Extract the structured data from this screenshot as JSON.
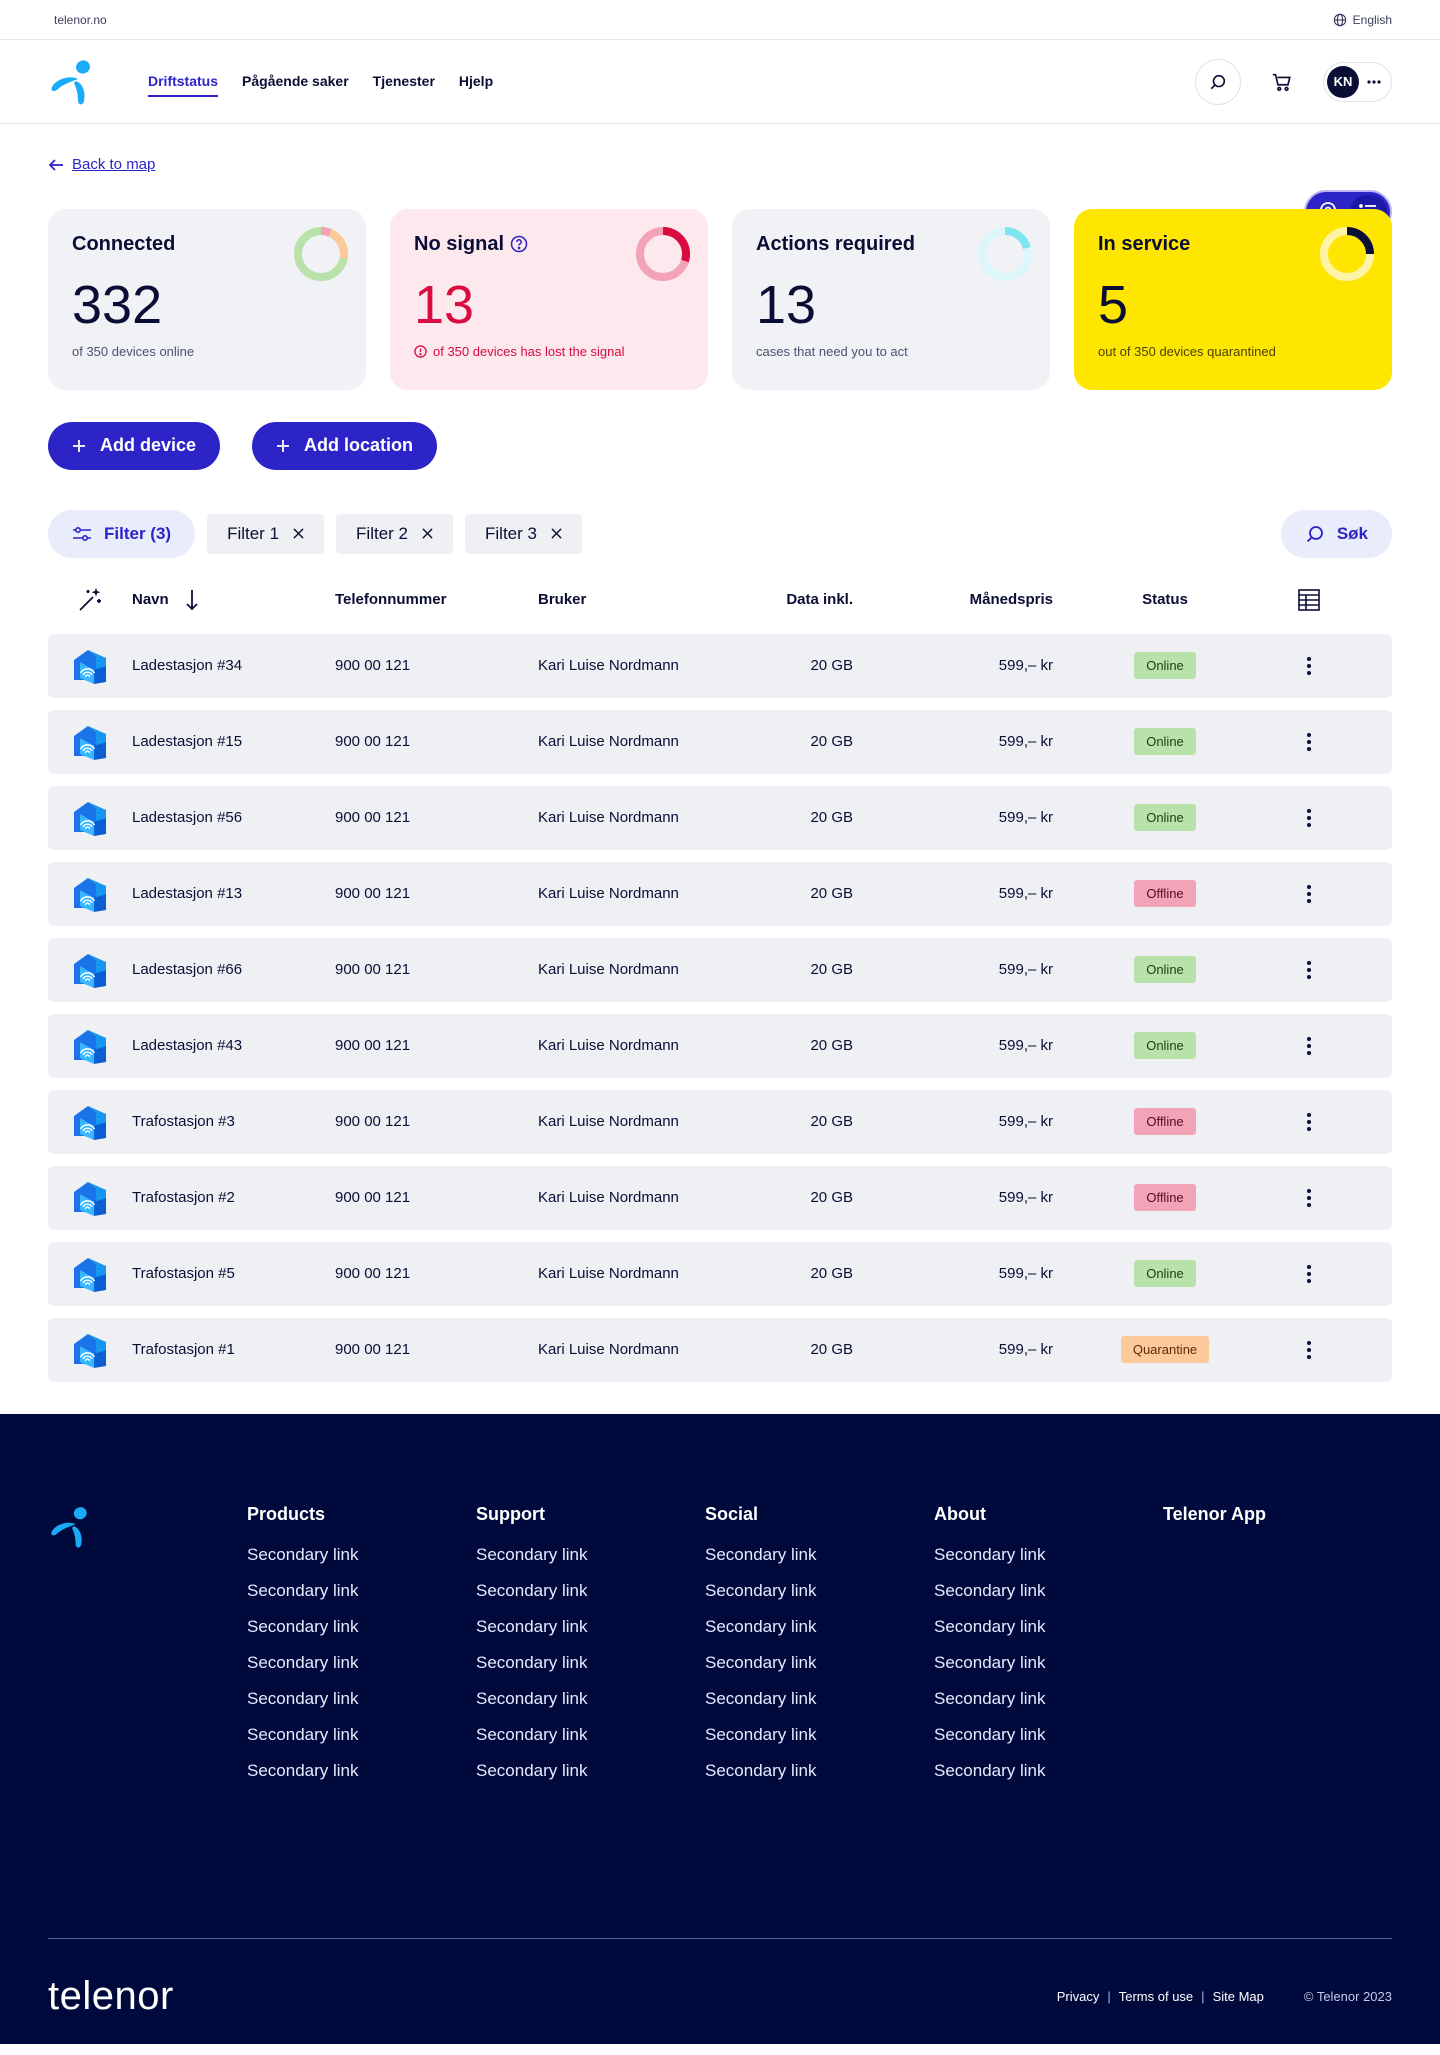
{
  "utility": {
    "domain": "telenor.no",
    "language": "English"
  },
  "nav": {
    "items": [
      {
        "label": "Driftstatus",
        "active": true
      },
      {
        "label": "Pågående saker",
        "active": false
      },
      {
        "label": "Tjenester",
        "active": false
      },
      {
        "label": "Hjelp",
        "active": false
      }
    ],
    "avatar_initials": "KN"
  },
  "main": {
    "back_label": "Back to map",
    "cards": [
      {
        "title": "Connected",
        "value": "332",
        "subtitle": "of 350 devices online"
      },
      {
        "title": "No signal",
        "value": "13",
        "subtitle": "of 350 devices has lost the signal"
      },
      {
        "title": "Actions required",
        "value": "13",
        "subtitle": "cases that need you to act"
      },
      {
        "title": "In service",
        "value": "5",
        "subtitle": "out of 350 devices quarantined"
      }
    ],
    "add_device_label": "Add device",
    "add_location_label": "Add location",
    "filter_label": "Filter (3)",
    "chips": [
      "Filter 1",
      "Filter 2",
      "Filter 3"
    ],
    "search_label": "Søk"
  },
  "table": {
    "headers": {
      "name": "Navn",
      "phone": "Telefonnummer",
      "user": "Bruker",
      "data": "Data inkl.",
      "price": "Månedspris",
      "status": "Status"
    },
    "rows": [
      {
        "name": "Ladestasjon #34",
        "phone": "900 00 121",
        "user": "Kari Luise Nordmann",
        "data": "20 GB",
        "price": "599,– kr",
        "status": "Online"
      },
      {
        "name": "Ladestasjon #15",
        "phone": "900 00 121",
        "user": "Kari Luise Nordmann",
        "data": "20 GB",
        "price": "599,– kr",
        "status": "Online"
      },
      {
        "name": "Ladestasjon #56",
        "phone": "900 00 121",
        "user": "Kari Luise Nordmann",
        "data": "20 GB",
        "price": "599,– kr",
        "status": "Online"
      },
      {
        "name": "Ladestasjon #13",
        "phone": "900 00 121",
        "user": "Kari Luise Nordmann",
        "data": "20 GB",
        "price": "599,– kr",
        "status": "Offline"
      },
      {
        "name": "Ladestasjon #66",
        "phone": "900 00 121",
        "user": "Kari Luise Nordmann",
        "data": "20 GB",
        "price": "599,– kr",
        "status": "Online"
      },
      {
        "name": "Ladestasjon #43",
        "phone": "900 00 121",
        "user": "Kari Luise Nordmann",
        "data": "20 GB",
        "price": "599,– kr",
        "status": "Online"
      },
      {
        "name": "Trafostasjon #3",
        "phone": "900 00 121",
        "user": "Kari Luise Nordmann",
        "data": "20 GB",
        "price": "599,– kr",
        "status": "Offline"
      },
      {
        "name": "Trafostasjon #2",
        "phone": "900 00 121",
        "user": "Kari Luise Nordmann",
        "data": "20 GB",
        "price": "599,– kr",
        "status": "Offline"
      },
      {
        "name": "Trafostasjon #5",
        "phone": "900 00 121",
        "user": "Kari Luise Nordmann",
        "data": "20 GB",
        "price": "599,– kr",
        "status": "Online"
      },
      {
        "name": "Trafostasjon #1",
        "phone": "900 00 121",
        "user": "Kari Luise Nordmann",
        "data": "20 GB",
        "price": "599,– kr",
        "status": "Quarantine"
      }
    ]
  },
  "footer": {
    "columns": [
      {
        "title": "Products",
        "links": [
          "Secondary link",
          "Secondary link",
          "Secondary link",
          "Secondary link",
          "Secondary link",
          "Secondary link",
          "Secondary link"
        ]
      },
      {
        "title": "Support",
        "links": [
          "Secondary link",
          "Secondary link",
          "Secondary link",
          "Secondary link",
          "Secondary link",
          "Secondary link",
          "Secondary link"
        ]
      },
      {
        "title": "Social",
        "links": [
          "Secondary link",
          "Secondary link",
          "Secondary link",
          "Secondary link",
          "Secondary link",
          "Secondary link",
          "Secondary link"
        ]
      },
      {
        "title": "About",
        "links": [
          "Secondary link",
          "Secondary link",
          "Secondary link",
          "Secondary link",
          "Secondary link",
          "Secondary link",
          "Secondary link"
        ]
      },
      {
        "title": "Telenor App",
        "links": []
      }
    ],
    "wordmark": "telenor",
    "legal": [
      "Privacy",
      "Terms of use",
      "Site Map"
    ],
    "copyright": "© Telenor 2023"
  },
  "colors": {
    "accent": "#2c24c7",
    "navy": "#00093c",
    "online": "#b9e2aa",
    "offline": "#f2a3b8",
    "quarantine": "#fdc89a",
    "highlight": "#ffe600"
  }
}
